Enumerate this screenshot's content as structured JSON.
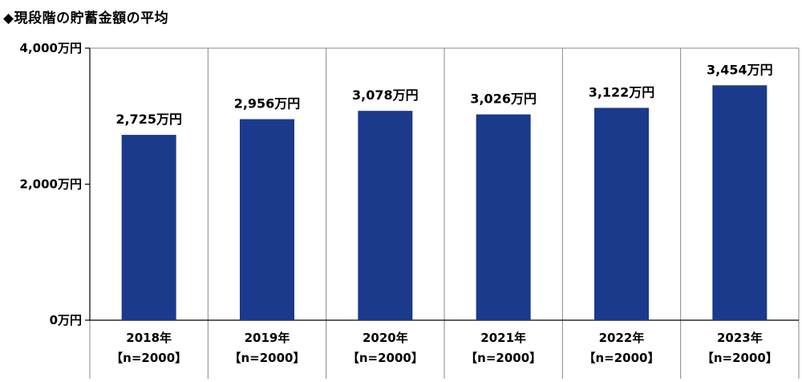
{
  "title": "◆現段階の貯蓄金額の平均",
  "chart_data": {
    "type": "bar",
    "title": "◆現段階の貯蓄金額の平均",
    "xlabel": "",
    "ylabel": "",
    "categories": [
      "2018年",
      "2019年",
      "2020年",
      "2021年",
      "2022年",
      "2023年"
    ],
    "category_sublabels": [
      "【n=2000】",
      "【n=2000】",
      "【n=2000】",
      "【n=2000】",
      "【n=2000】",
      "【n=2000】"
    ],
    "values": [
      2725,
      2956,
      3078,
      3026,
      3122,
      3454
    ],
    "data_labels": [
      "2,725万円",
      "2,956万円",
      "3,078万円",
      "3,026万円",
      "3,122万円",
      "3,454万円"
    ],
    "ylim": [
      0,
      4000
    ],
    "yticks": [
      0,
      2000,
      4000
    ],
    "ytick_labels": [
      "0万円",
      "2,000万円",
      "4,000万円"
    ],
    "grid": "vertical-separators",
    "legend": "none",
    "bar_color": "#1b3a8c"
  }
}
